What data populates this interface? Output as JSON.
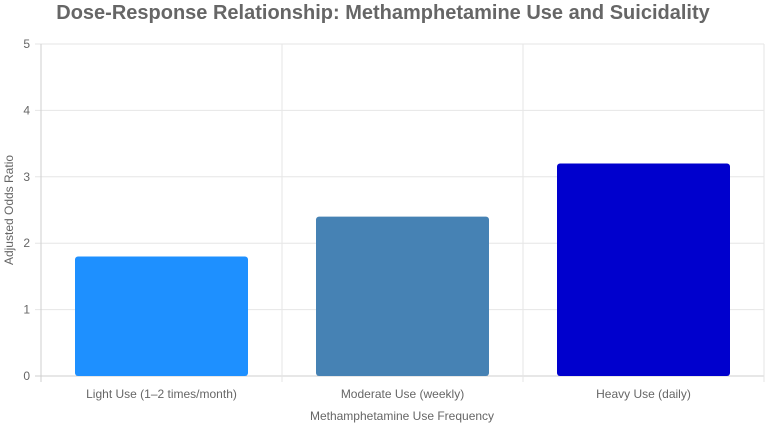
{
  "chart_data": {
    "type": "bar",
    "title": "Dose-Response Relationship: Methamphetamine Use and Suicidality",
    "xlabel": "Methamphetamine Use Frequency",
    "ylabel": "Adjusted Odds Ratio",
    "categories": [
      "Light Use (1–2 times/month)",
      "Moderate Use (weekly)",
      "Heavy Use (daily)"
    ],
    "values": [
      1.8,
      2.4,
      3.2
    ],
    "colors": [
      "#1e90ff",
      "#4682b4",
      "#0000cd"
    ],
    "ylim": [
      0,
      5
    ],
    "yticks": [
      "0",
      "1",
      "2",
      "3",
      "4",
      "5"
    ],
    "grid": true,
    "legend": "none"
  }
}
